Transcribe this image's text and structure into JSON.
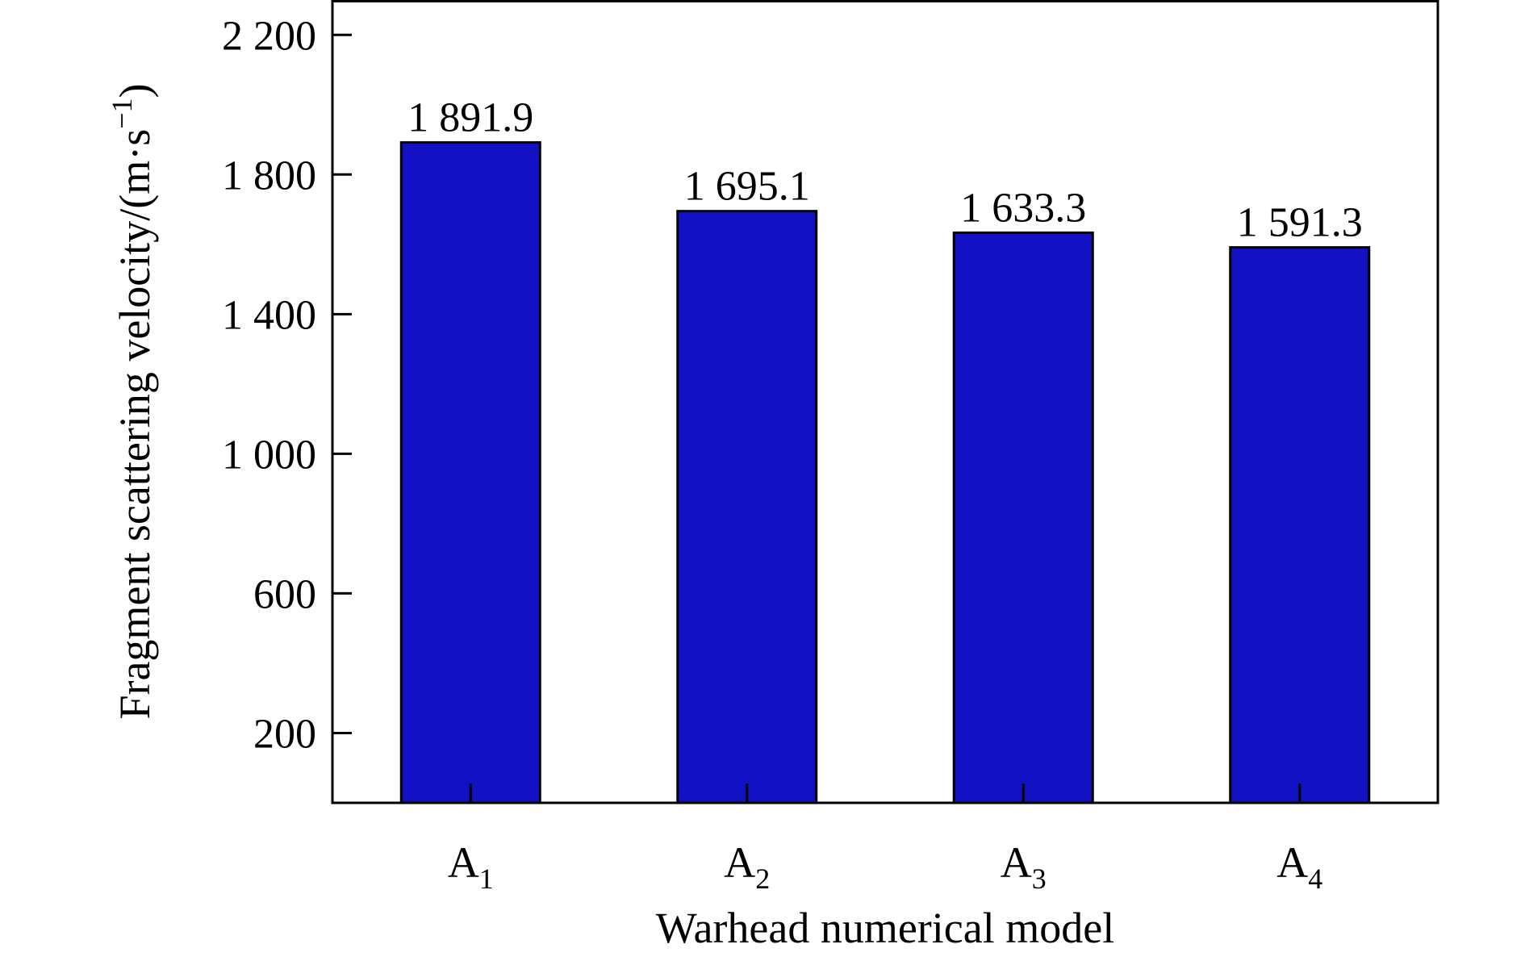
{
  "chart_data": {
    "type": "bar",
    "categories": [
      {
        "base": "A",
        "sub": "1"
      },
      {
        "base": "A",
        "sub": "2"
      },
      {
        "base": "A",
        "sub": "3"
      },
      {
        "base": "A",
        "sub": "4"
      }
    ],
    "values": [
      1891.9,
      1695.1,
      1633.3,
      1591.3
    ],
    "data_labels": [
      "1 891.9",
      "1 695.1",
      "1 633.3",
      "1 591.3"
    ],
    "xlabel": "Warhead numerical model",
    "ylabel": "Fragment scattering velocity/(m·s",
    "ylabel_superscript": "−1",
    "ylabel_close": ")",
    "ylim": [
      0,
      2300
    ],
    "yticks": [
      200,
      600,
      1000,
      1400,
      1800,
      2200
    ],
    "ytick_labels": [
      "200",
      "600",
      "1 000",
      "1 400",
      "1 800",
      "2 200"
    ],
    "grid": false,
    "legend": null,
    "colors": {
      "bar_fill": "#1212c4",
      "bar_edge": "#000000",
      "axis": "#000000"
    }
  }
}
